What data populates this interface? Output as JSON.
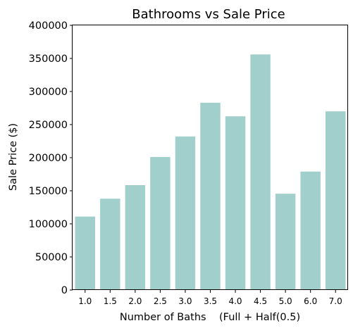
{
  "chart_data": {
    "type": "bar",
    "title": "Bathrooms vs Sale Price",
    "xlabel": "Number of Baths    (Full + Half(0.5)",
    "ylabel": "Sale Price ($)",
    "categories": [
      "1.0",
      "1.5",
      "2.0",
      "2.5",
      "3.0",
      "3.5",
      "4.0",
      "4.5",
      "5.0",
      "6.0",
      "7.0"
    ],
    "values": [
      111000,
      138000,
      158500,
      201000,
      232000,
      283000,
      262500,
      356000,
      145500,
      179000,
      270000
    ],
    "ylim": [
      0,
      400000
    ],
    "yticks": [
      "0",
      "50000",
      "100000",
      "150000",
      "200000",
      "250000",
      "300000",
      "350000",
      "400000"
    ],
    "bar_color": "#a1cfcc",
    "grid": false
  }
}
